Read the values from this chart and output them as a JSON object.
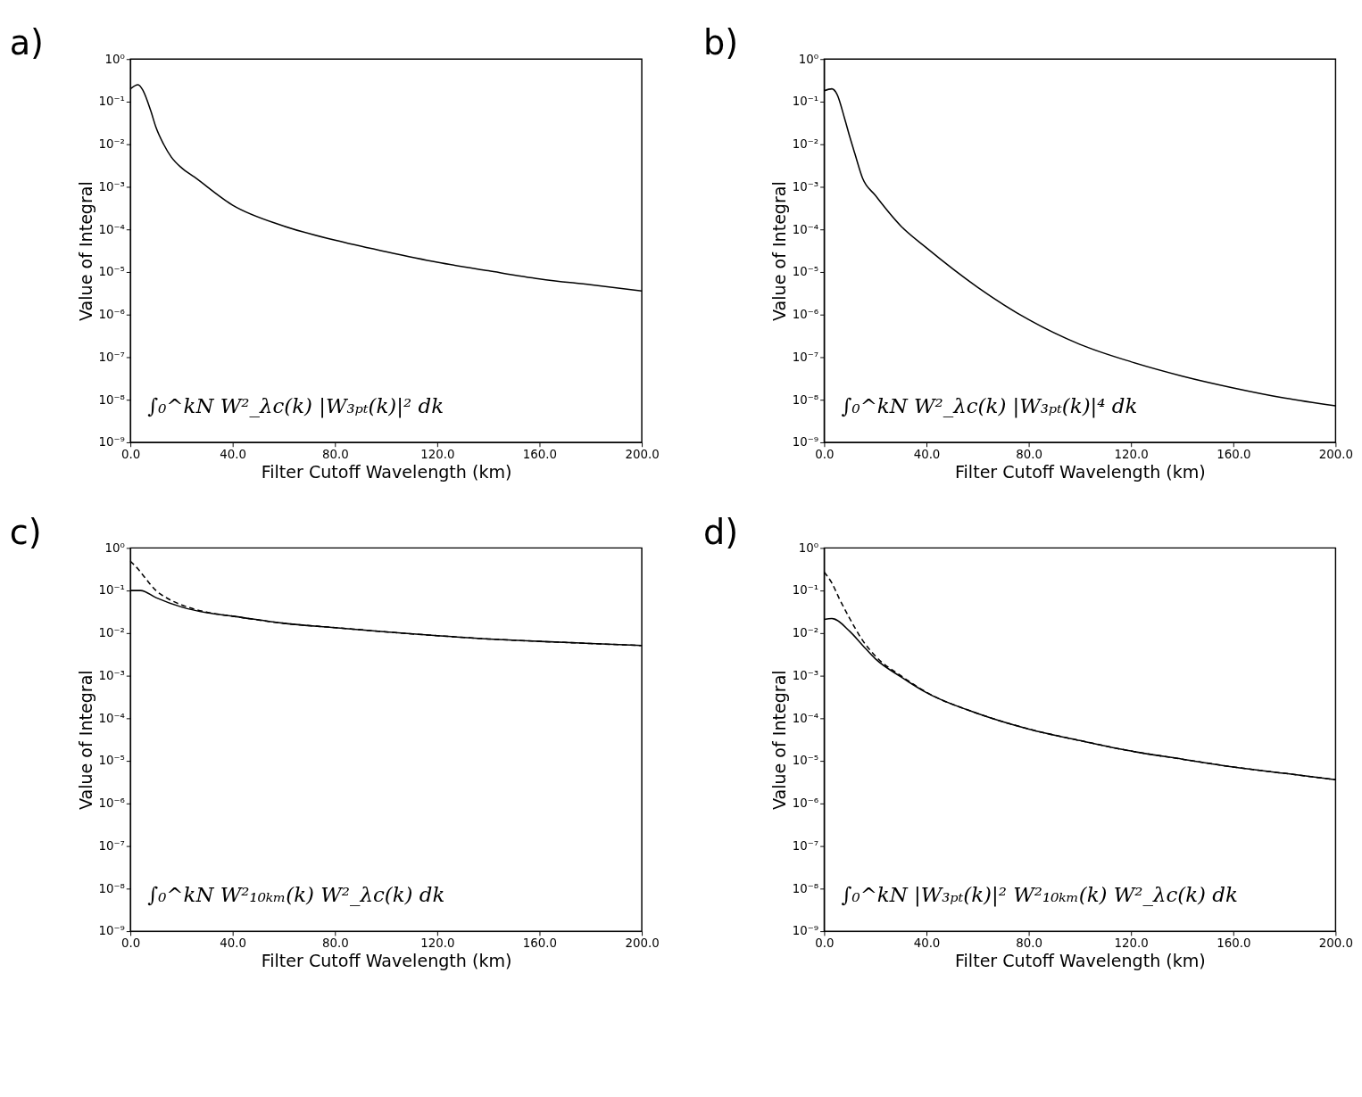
{
  "chart_data": [
    {
      "type": "line",
      "title": "a)",
      "xlabel": "Filter Cutoff Wavelength (km)",
      "ylabel": "Value of Integral",
      "log": "y",
      "grid": false,
      "marker": "none",
      "xlim": [
        0,
        200
      ],
      "xticks": [
        {
          "value": 0,
          "label": "0.0"
        },
        {
          "value": 40,
          "label": "40.0"
        },
        {
          "value": 80,
          "label": "80.0"
        },
        {
          "value": 120,
          "label": "120.0"
        },
        {
          "value": 160,
          "label": "160.0"
        },
        {
          "value": 200,
          "label": "200.0"
        }
      ],
      "ylim": [
        1e-09,
        1
      ],
      "yticks": [
        {
          "value": 1e-09,
          "label": "10⁻⁹"
        },
        {
          "value": 1e-08,
          "label": "10⁻⁸"
        },
        {
          "value": 1e-07,
          "label": "10⁻⁷"
        },
        {
          "value": 1e-06,
          "label": "10⁻⁶"
        },
        {
          "value": 1e-05,
          "label": "10⁻⁵"
        },
        {
          "value": 0.0001,
          "label": "10⁻⁴"
        },
        {
          "value": 0.001,
          "label": "10⁻³"
        },
        {
          "value": 0.01,
          "label": "10⁻²"
        },
        {
          "value": 0.1,
          "label": "10⁻¹"
        },
        {
          "value": 1,
          "label": "10⁰"
        }
      ],
      "annotations": [
        "∫₀^kN W²_λc(k) |W₃ₚₜ(k)|² dk"
      ],
      "series": [
        {
          "color": "#000000",
          "line_style": "solid",
          "x": [
            0,
            3,
            5,
            8,
            10,
            13,
            16,
            20,
            25,
            40,
            60,
            80,
            100,
            120,
            140,
            160,
            180,
            200
          ],
          "values": [
            0.2,
            0.25,
            0.18,
            0.06,
            0.025,
            0.01,
            0.005,
            0.0028,
            0.0017,
            0.00037,
            0.00012,
            5.6e-05,
            3e-05,
            1.7e-05,
            1.07e-05,
            6.9e-06,
            5e-06,
            3.6e-06
          ]
        }
      ]
    },
    {
      "type": "line",
      "title": "b)",
      "xlabel": "Filter Cutoff Wavelength (km)",
      "ylabel": "Value of Integral",
      "log": "y",
      "grid": false,
      "marker": "none",
      "xlim": [
        0,
        200
      ],
      "xticks": [
        {
          "value": 0,
          "label": "0.0"
        },
        {
          "value": 40,
          "label": "40.0"
        },
        {
          "value": 80,
          "label": "80.0"
        },
        {
          "value": 120,
          "label": "120.0"
        },
        {
          "value": 160,
          "label": "160.0"
        },
        {
          "value": 200,
          "label": "200.0"
        }
      ],
      "ylim": [
        1e-09,
        1
      ],
      "yticks": [
        {
          "value": 1e-09,
          "label": "10⁻⁹"
        },
        {
          "value": 1e-08,
          "label": "10⁻⁸"
        },
        {
          "value": 1e-07,
          "label": "10⁻⁷"
        },
        {
          "value": 1e-06,
          "label": "10⁻⁶"
        },
        {
          "value": 1e-05,
          "label": "10⁻⁵"
        },
        {
          "value": 0.0001,
          "label": "10⁻⁴"
        },
        {
          "value": 0.001,
          "label": "10⁻³"
        },
        {
          "value": 0.01,
          "label": "10⁻²"
        },
        {
          "value": 0.1,
          "label": "10⁻¹"
        },
        {
          "value": 1,
          "label": "10⁰"
        }
      ],
      "annotations": [
        "∫₀^kN W²_λc(k) |W₃ₚₜ(k)|⁴ dk"
      ],
      "series": [
        {
          "color": "#000000",
          "line_style": "solid",
          "x": [
            0,
            3,
            5,
            8,
            10,
            12,
            15,
            20,
            30,
            40,
            60,
            80,
            100,
            120,
            140,
            160,
            180,
            200
          ],
          "values": [
            0.18,
            0.2,
            0.15,
            0.04,
            0.015,
            0.006,
            0.0016,
            0.00063,
            0.00012,
            3.7e-05,
            4.4e-06,
            7.6e-07,
            2e-07,
            7.8e-08,
            3.6e-08,
            1.9e-08,
            1.1e-08,
            7.2e-09
          ]
        }
      ]
    },
    {
      "type": "line",
      "title": "c)",
      "xlabel": "Filter Cutoff Wavelength (km)",
      "ylabel": "Value of Integral",
      "log": "y",
      "grid": false,
      "marker": "none",
      "xlim": [
        0,
        200
      ],
      "xticks": [
        {
          "value": 0,
          "label": "0.0"
        },
        {
          "value": 40,
          "label": "40.0"
        },
        {
          "value": 80,
          "label": "80.0"
        },
        {
          "value": 120,
          "label": "120.0"
        },
        {
          "value": 160,
          "label": "160.0"
        },
        {
          "value": 200,
          "label": "200.0"
        }
      ],
      "ylim": [
        1e-09,
        1
      ],
      "yticks": [
        {
          "value": 1e-09,
          "label": "10⁻⁹"
        },
        {
          "value": 1e-08,
          "label": "10⁻⁸"
        },
        {
          "value": 1e-07,
          "label": "10⁻⁷"
        },
        {
          "value": 1e-06,
          "label": "10⁻⁶"
        },
        {
          "value": 1e-05,
          "label": "10⁻⁵"
        },
        {
          "value": 0.0001,
          "label": "10⁻⁴"
        },
        {
          "value": 0.001,
          "label": "10⁻³"
        },
        {
          "value": 0.01,
          "label": "10⁻²"
        },
        {
          "value": 0.1,
          "label": "10⁻¹"
        },
        {
          "value": 1,
          "label": "10⁰"
        }
      ],
      "annotations": [
        "∫₀^kN W²₁₀ₖₘ(k) W²_λc(k) dk"
      ],
      "series": [
        {
          "color": "#000000",
          "line_style": "solid",
          "x": [
            0,
            4,
            10,
            20,
            30,
            40,
            60,
            80,
            100,
            120,
            140,
            160,
            180,
            200
          ],
          "values": [
            0.1,
            0.1,
            0.068,
            0.041,
            0.03,
            0.025,
            0.017,
            0.0135,
            0.0107,
            0.0087,
            0.0073,
            0.0064,
            0.0057,
            0.0051
          ]
        },
        {
          "color": "#000000",
          "line_style": "dashed",
          "x": [
            0,
            3,
            6,
            10,
            15,
            20,
            30,
            40,
            60,
            80,
            100,
            120,
            140,
            160,
            180,
            200
          ],
          "values": [
            0.49,
            0.32,
            0.19,
            0.1,
            0.063,
            0.046,
            0.031,
            0.025,
            0.017,
            0.0135,
            0.0107,
            0.0087,
            0.0073,
            0.0064,
            0.0057,
            0.0051
          ]
        }
      ]
    },
    {
      "type": "line",
      "title": "d)",
      "xlabel": "Filter Cutoff Wavelength (km)",
      "ylabel": "Value of Integral",
      "log": "y",
      "grid": false,
      "marker": "none",
      "xlim": [
        0,
        200
      ],
      "xticks": [
        {
          "value": 0,
          "label": "0.0"
        },
        {
          "value": 40,
          "label": "40.0"
        },
        {
          "value": 80,
          "label": "80.0"
        },
        {
          "value": 120,
          "label": "120.0"
        },
        {
          "value": 160,
          "label": "160.0"
        },
        {
          "value": 200,
          "label": "200.0"
        }
      ],
      "ylim": [
        1e-09,
        1
      ],
      "yticks": [
        {
          "value": 1e-09,
          "label": "10⁻⁹"
        },
        {
          "value": 1e-08,
          "label": "10⁻⁸"
        },
        {
          "value": 1e-07,
          "label": "10⁻⁷"
        },
        {
          "value": 1e-06,
          "label": "10⁻⁶"
        },
        {
          "value": 1e-05,
          "label": "10⁻⁵"
        },
        {
          "value": 0.0001,
          "label": "10⁻⁴"
        },
        {
          "value": 0.001,
          "label": "10⁻³"
        },
        {
          "value": 0.01,
          "label": "10⁻²"
        },
        {
          "value": 0.1,
          "label": "10⁻¹"
        },
        {
          "value": 1,
          "label": "10⁰"
        }
      ],
      "annotations": [
        "∫₀^kN |W₃ₚₜ(k)|² W²₁₀ₖₘ(k) W²_λc(k) dk"
      ],
      "series": [
        {
          "color": "#000000",
          "line_style": "solid",
          "x": [
            0,
            3,
            10,
            15,
            20,
            30,
            40,
            60,
            80,
            100,
            120,
            140,
            160,
            180,
            200
          ],
          "values": [
            0.021,
            0.022,
            0.011,
            0.0052,
            0.0025,
            0.00094,
            0.0004,
            0.00013,
            5.6e-05,
            3e-05,
            1.7e-05,
            1.1e-05,
            7.2e-06,
            5.1e-06,
            3.6e-06
          ]
        },
        {
          "color": "#000000",
          "line_style": "dashed",
          "x": [
            0,
            3,
            6,
            10,
            15,
            20,
            30,
            40,
            60,
            80,
            100,
            120,
            140,
            160,
            180,
            200
          ],
          "values": [
            0.27,
            0.15,
            0.063,
            0.022,
            0.0068,
            0.0029,
            0.001,
            0.00041,
            0.00013,
            5.6e-05,
            3e-05,
            1.7e-05,
            1.1e-05,
            7.2e-06,
            5.1e-06,
            3.6e-06
          ]
        }
      ]
    }
  ]
}
